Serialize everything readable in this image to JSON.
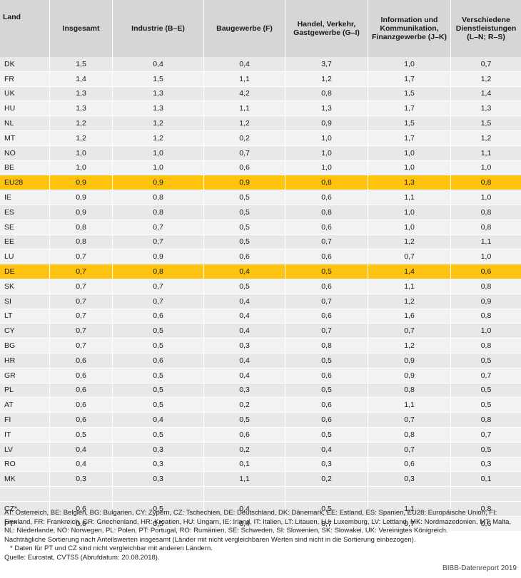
{
  "headers": [
    "Land",
    "Insgesamt",
    "Industrie (B–E)",
    "Baugewerbe (F)",
    "Handel, Verkehr, Gastgewerbe (G–I)",
    "Information und Kommunikation, Finanzgewerbe (J–K)",
    "Verschiedene Dienstleistungen (L–N; R–S)"
  ],
  "rows": [
    [
      "DK",
      "1,5",
      "0,4",
      "0,4",
      "3,7",
      "1,0",
      "0,7"
    ],
    [
      "FR",
      "1,4",
      "1,5",
      "1,1",
      "1,2",
      "1,7",
      "1,2"
    ],
    [
      "UK",
      "1,3",
      "1,3",
      "4,2",
      "0,8",
      "1,5",
      "1,4"
    ],
    [
      "HU",
      "1,3",
      "1,3",
      "1,1",
      "1,3",
      "1,7",
      "1,3"
    ],
    [
      "NL",
      "1,2",
      "1,2",
      "1,2",
      "0,9",
      "1,5",
      "1,5"
    ],
    [
      "MT",
      "1,2",
      "1,2",
      "0,2",
      "1,0",
      "1,7",
      "1,2"
    ],
    [
      "NO",
      "1,0",
      "1,0",
      "0,7",
      "1,0",
      "1,0",
      "1,1"
    ],
    [
      "BE",
      "1,0",
      "1,0",
      "0,6",
      "1,0",
      "1,0",
      "1,0"
    ],
    [
      "EU28",
      "0,9",
      "0,9",
      "0,9",
      "0,8",
      "1,3",
      "0,8"
    ],
    [
      "IE",
      "0,9",
      "0,8",
      "0,5",
      "0,6",
      "1,1",
      "1,0"
    ],
    [
      "ES",
      "0,9",
      "0,8",
      "0,5",
      "0,8",
      "1,0",
      "0,8"
    ],
    [
      "SE",
      "0,8",
      "0,7",
      "0,5",
      "0,6",
      "1,0",
      "0,8"
    ],
    [
      "EE",
      "0,8",
      "0,7",
      "0,5",
      "0,7",
      "1,2",
      "1,1"
    ],
    [
      "LU",
      "0,7",
      "0,9",
      "0,6",
      "0,6",
      "0,7",
      "1,0"
    ],
    [
      "DE",
      "0,7",
      "0,8",
      "0,4",
      "0,5",
      "1,4",
      "0,6"
    ],
    [
      "SK",
      "0,7",
      "0,7",
      "0,5",
      "0,6",
      "1,1",
      "0,8"
    ],
    [
      "SI",
      "0,7",
      "0,7",
      "0,4",
      "0,7",
      "1,2",
      "0,9"
    ],
    [
      "LT",
      "0,7",
      "0,6",
      "0,4",
      "0,6",
      "1,6",
      "0,8"
    ],
    [
      "CY",
      "0,7",
      "0,5",
      "0,4",
      "0,7",
      "0,7",
      "1,0"
    ],
    [
      "BG",
      "0,7",
      "0,5",
      "0,3",
      "0,8",
      "1,2",
      "0,8"
    ],
    [
      "HR",
      "0,6",
      "0,6",
      "0,4",
      "0,5",
      "0,9",
      "0,5"
    ],
    [
      "GR",
      "0,6",
      "0,5",
      "0,4",
      "0,6",
      "0,9",
      "0,7"
    ],
    [
      "PL",
      "0,6",
      "0,5",
      "0,3",
      "0,5",
      "0,8",
      "0,5"
    ],
    [
      "AT",
      "0,6",
      "0,5",
      "0,2",
      "0,6",
      "1,1",
      "0,5"
    ],
    [
      "FI",
      "0,6",
      "0,4",
      "0,5",
      "0,6",
      "0,7",
      "0,8"
    ],
    [
      "IT",
      "0,5",
      "0,5",
      "0,6",
      "0,5",
      "0,8",
      "0,7"
    ],
    [
      "LV",
      "0,4",
      "0,3",
      "0,2",
      "0,4",
      "0,7",
      "0,5"
    ],
    [
      "RO",
      "0,4",
      "0,3",
      "0,1",
      "0,3",
      "0,6",
      "0,3"
    ],
    [
      "MK",
      "0,3",
      "0,3",
      "1,1",
      "0,2",
      "0,3",
      "0,1"
    ],
    [
      "",
      "",
      "",
      "",
      "",
      "",
      ""
    ],
    [
      "CZ*",
      "0,6",
      "0,5",
      "0,4",
      "0,5",
      "1,1",
      "0,8"
    ],
    [
      "PT*",
      "0,6",
      "0,5",
      "0,4",
      "0,7",
      "0,7",
      "0,6"
    ]
  ],
  "highlight_rows": [
    "EU28",
    "DE"
  ],
  "highlight_color": "#ffc20e",
  "notes": [
    "AT: Österreich, BE: Belgien, BG: Bulgarien, CY: Zypern, CZ: Tschechien, DE: Deutschland, DK: Dänemark, EE: Estland, ES: Spanien, EU28: Europäische Union, FI: Finnland, FR: Frankreich, GR: Griechenland, HR: Kroatien, HU: Ungarn, IE: Irland, IT: Italien, LT: Litauen, LU: Luxemburg, LV: Lettland, MK: Nordmazedonien, MT: Malta, NL: Niederlande, NO: Norwegen, PL: Polen, PT: Portugal, RO: Rumänien, SE: Schweden, SI: Slowenien, SK: Slowakei, UK: Vereinigtes Königreich.",
    "Nachträgliche Sortierung nach Anteilswerten insgesamt (Länder mit nicht vergleichbaren Werten sind nicht in die Sortierung einbezogen).",
    "* Daten für PT und CZ sind nicht vergleichbar mit anderen Ländern.",
    "Quelle: Eurostat, CVTS5 (Abrufdatum: 20.08.2018)."
  ],
  "credit": "BIBB-Datenreport 2019"
}
